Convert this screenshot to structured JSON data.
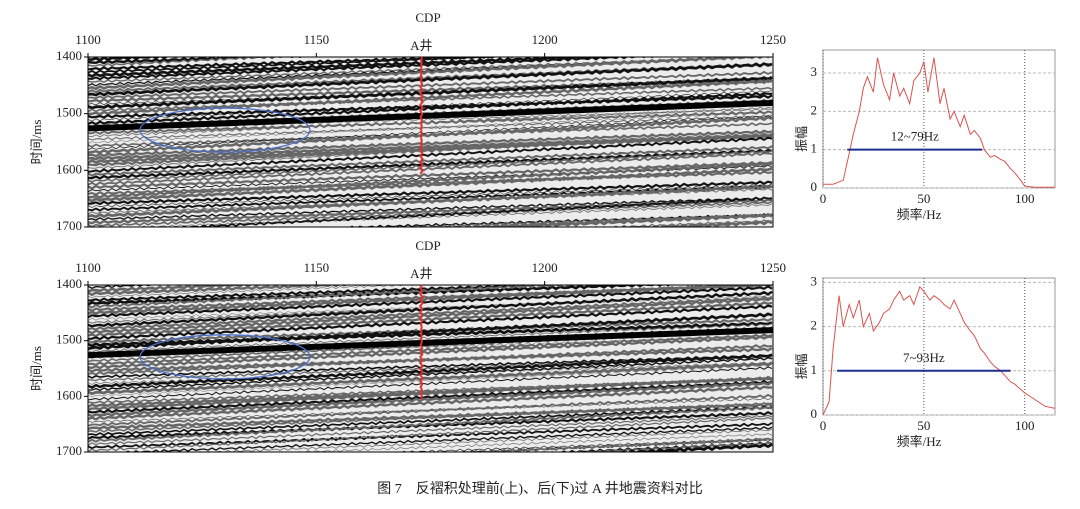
{
  "caption": "图 7　反褶积处理前(上)、后(下)过 A 井地震资料对比",
  "panels": [
    {
      "section": {
        "x_label": "CDP",
        "xlim": [
          1100,
          1250
        ],
        "xticks": [
          1100,
          1150,
          1200,
          1250
        ],
        "y_label": "时间/ms",
        "ylim": [
          1400,
          1700
        ],
        "yticks": [
          1400,
          1500,
          1600,
          1700
        ],
        "well_label": "A井",
        "well_cdp": 1173
      },
      "spectrum": {
        "type": "line",
        "color": "#d9534f",
        "x": [
          0,
          5,
          10,
          13,
          15,
          18,
          20,
          22,
          25,
          27,
          30,
          33,
          35,
          38,
          40,
          43,
          45,
          48,
          50,
          52,
          55,
          58,
          60,
          63,
          65,
          68,
          70,
          73,
          75,
          78,
          80,
          83,
          85,
          88,
          90,
          93,
          95,
          98,
          100,
          105,
          110,
          115
        ],
        "values": [
          0.1,
          0.1,
          0.2,
          0.9,
          1.4,
          2.0,
          2.6,
          2.9,
          2.5,
          3.4,
          2.7,
          2.3,
          3.0,
          2.4,
          2.6,
          2.2,
          2.8,
          3.0,
          3.3,
          2.5,
          3.4,
          2.2,
          2.6,
          1.8,
          2.0,
          1.6,
          1.9,
          1.4,
          1.5,
          1.3,
          1.0,
          0.8,
          0.85,
          0.75,
          0.7,
          0.5,
          0.4,
          0.2,
          0.05,
          0.02,
          0.02,
          0.02
        ],
        "xlim": [
          0,
          115
        ],
        "ylim": [
          0,
          3.6
        ],
        "xticks": [
          0,
          50,
          100
        ],
        "yticks": [
          0,
          1,
          2,
          3
        ],
        "x_label": "频率/Hz",
        "y_label": "振幅",
        "band": [
          12,
          79
        ],
        "band_level": 1,
        "band_label": "12~79Hz",
        "band_color": "#1f2f8f"
      }
    },
    {
      "section": {
        "x_label": "CDP",
        "xlim": [
          1100,
          1250
        ],
        "xticks": [
          1100,
          1150,
          1200,
          1250
        ],
        "y_label": "时间/ms",
        "ylim": [
          1400,
          1700
        ],
        "yticks": [
          1400,
          1500,
          1600,
          1700
        ],
        "well_label": "A井",
        "well_cdp": 1173
      },
      "spectrum": {
        "type": "line",
        "color": "#d9534f",
        "x": [
          0,
          3,
          5,
          8,
          10,
          13,
          15,
          18,
          20,
          23,
          25,
          28,
          30,
          33,
          35,
          38,
          40,
          43,
          45,
          48,
          50,
          53,
          55,
          58,
          60,
          63,
          65,
          68,
          70,
          73,
          75,
          78,
          80,
          83,
          85,
          88,
          90,
          93,
          95,
          100,
          105,
          110,
          115
        ],
        "values": [
          0,
          0.3,
          1.5,
          2.7,
          2.0,
          2.5,
          2.2,
          2.6,
          2.0,
          2.3,
          1.9,
          2.1,
          2.3,
          2.4,
          2.6,
          2.8,
          2.6,
          2.7,
          2.5,
          2.9,
          2.8,
          2.6,
          2.7,
          2.6,
          2.5,
          2.4,
          2.6,
          2.3,
          2.1,
          1.9,
          1.8,
          1.5,
          1.4,
          1.2,
          1.1,
          1.0,
          0.9,
          0.75,
          0.7,
          0.5,
          0.35,
          0.2,
          0.15
        ],
        "xlim": [
          0,
          115
        ],
        "ylim": [
          0,
          3.1
        ],
        "xticks": [
          0,
          50,
          100
        ],
        "yticks": [
          0,
          1,
          2,
          3
        ],
        "x_label": "频率/Hz",
        "y_label": "振幅",
        "band": [
          7,
          93
        ],
        "band_level": 1,
        "band_label": "7~93Hz",
        "band_color": "#1f2f8f"
      }
    }
  ]
}
